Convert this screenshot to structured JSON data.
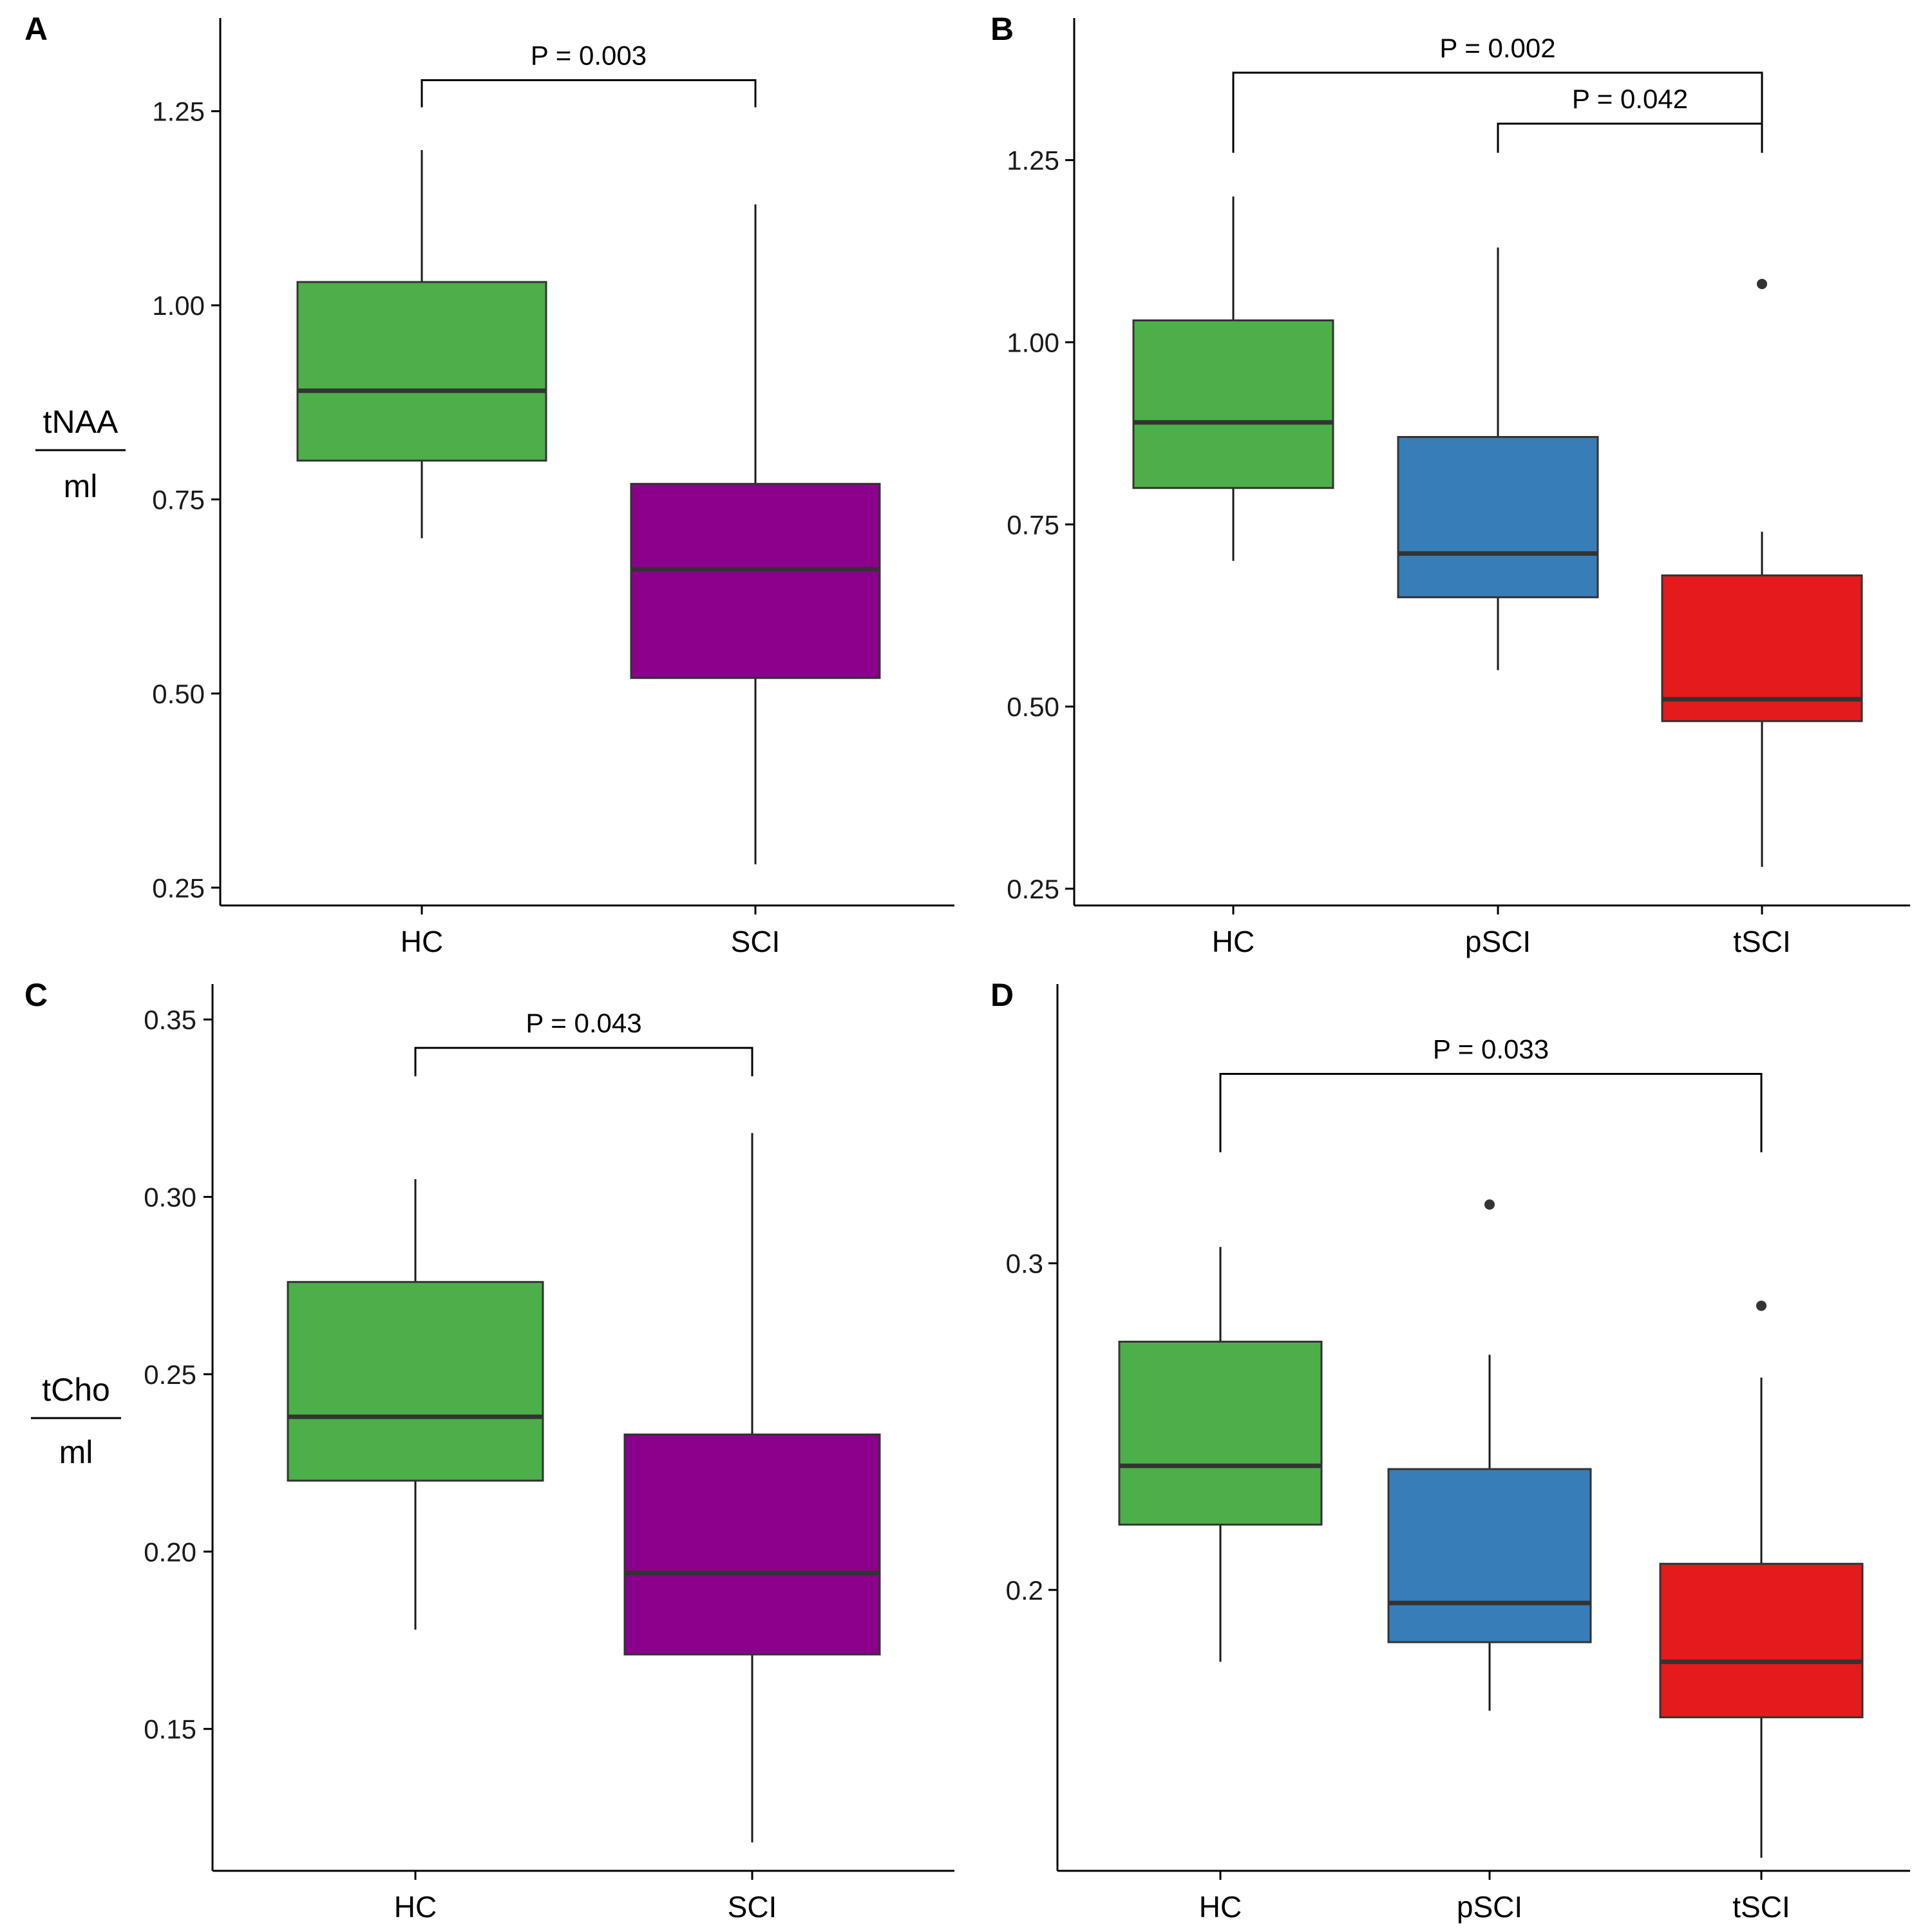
{
  "figure": {
    "panels": [
      "A",
      "B",
      "C",
      "D"
    ]
  },
  "chart_data": [
    {
      "id": "A",
      "panel_label": "A",
      "type": "box",
      "ylabel_num": "tNAA",
      "ylabel_den": "ml",
      "ylim": [
        0.227,
        1.37
      ],
      "yticks": [
        0.25,
        0.5,
        0.75,
        1.0,
        1.25
      ],
      "ytick_labels": [
        "0.25",
        "0.50",
        "0.75",
        "1.00",
        "1.25"
      ],
      "categories": [
        "HC",
        "SCI"
      ],
      "boxes": [
        {
          "name": "HC",
          "color": "#4daf4a",
          "whisker_low": 0.7,
          "q1": 0.8,
          "median": 0.89,
          "q3": 1.03,
          "whisker_high": 1.2,
          "outliers": []
        },
        {
          "name": "SCI",
          "color": "#8b008b",
          "whisker_low": 0.28,
          "q1": 0.52,
          "median": 0.66,
          "q3": 0.77,
          "whisker_high": 1.13,
          "outliers": []
        }
      ],
      "annotations": [
        {
          "from": 0,
          "to": 1,
          "text": "P = 0.003",
          "y_top": 1.29,
          "y_left": 1.255,
          "y_right": 1.255
        }
      ]
    },
    {
      "id": "B",
      "panel_label": "B",
      "type": "box",
      "ylabel_num": "",
      "ylabel_den": "",
      "ylim": [
        0.227,
        1.445
      ],
      "yticks": [
        0.25,
        0.5,
        0.75,
        1.0,
        1.25
      ],
      "ytick_labels": [
        "0.25",
        "0.50",
        "0.75",
        "1.00",
        "1.25"
      ],
      "categories": [
        "HC",
        "pSCI",
        "tSCI"
      ],
      "boxes": [
        {
          "name": "HC",
          "color": "#4daf4a",
          "whisker_low": 0.7,
          "q1": 0.8,
          "median": 0.89,
          "q3": 1.03,
          "whisker_high": 1.2,
          "outliers": []
        },
        {
          "name": "pSCI",
          "color": "#377eb8",
          "whisker_low": 0.55,
          "q1": 0.65,
          "median": 0.71,
          "q3": 0.87,
          "whisker_high": 1.13,
          "outliers": []
        },
        {
          "name": "tSCI",
          "color": "#e41a1c",
          "whisker_low": 0.28,
          "q1": 0.48,
          "median": 0.51,
          "q3": 0.68,
          "whisker_high": 0.74,
          "outliers": [
            1.08
          ]
        }
      ],
      "annotations": [
        {
          "from": 0,
          "to": 2,
          "text": "P = 0.002",
          "y_top": 1.37,
          "y_left": 1.26,
          "y_right": 1.26
        },
        {
          "from": 1,
          "to": 2,
          "text": "P = 0.042",
          "y_top": 1.3,
          "y_left": 1.26,
          "y_right": 1.26
        }
      ]
    },
    {
      "id": "C",
      "panel_label": "C",
      "type": "box",
      "ylabel_num": "tCho",
      "ylabel_den": "ml",
      "ylim": [
        0.11,
        0.36
      ],
      "yticks": [
        0.15,
        0.2,
        0.25,
        0.3,
        0.35
      ],
      "ytick_labels": [
        "0.15",
        "0.20",
        "0.25",
        "0.30",
        "0.35"
      ],
      "categories": [
        "HC",
        "SCI"
      ],
      "boxes": [
        {
          "name": "HC",
          "color": "#4daf4a",
          "whisker_low": 0.178,
          "q1": 0.22,
          "median": 0.238,
          "q3": 0.276,
          "whisker_high": 0.305,
          "outliers": []
        },
        {
          "name": "SCI",
          "color": "#8b008b",
          "whisker_low": 0.118,
          "q1": 0.171,
          "median": 0.194,
          "q3": 0.233,
          "whisker_high": 0.318,
          "outliers": []
        }
      ],
      "annotations": [
        {
          "from": 0,
          "to": 1,
          "text": "P = 0.043",
          "y_top": 0.342,
          "y_left": 0.334,
          "y_right": 0.334
        }
      ]
    },
    {
      "id": "D",
      "panel_label": "D",
      "type": "box",
      "ylabel_num": "",
      "ylabel_den": "",
      "ylim": [
        0.114,
        0.3855
      ],
      "yticks": [
        0.2,
        0.3
      ],
      "ytick_labels": [
        "0.2",
        "0.3"
      ],
      "categories": [
        "HC",
        "pSCI",
        "tSCI"
      ],
      "boxes": [
        {
          "name": "HC",
          "color": "#4daf4a",
          "whisker_low": 0.178,
          "q1": 0.22,
          "median": 0.238,
          "q3": 0.276,
          "whisker_high": 0.305,
          "outliers": []
        },
        {
          "name": "pSCI",
          "color": "#377eb8",
          "whisker_low": 0.163,
          "q1": 0.184,
          "median": 0.196,
          "q3": 0.237,
          "whisker_high": 0.272,
          "outliers": [
            0.318
          ]
        },
        {
          "name": "tSCI",
          "color": "#e41a1c",
          "whisker_low": 0.118,
          "q1": 0.161,
          "median": 0.178,
          "q3": 0.208,
          "whisker_high": 0.265,
          "outliers": [
            0.287
          ]
        }
      ],
      "annotations": [
        {
          "from": 0,
          "to": 2,
          "text": "P = 0.033",
          "y_top": 0.358,
          "y_left": 0.334,
          "y_right": 0.334
        }
      ]
    }
  ]
}
